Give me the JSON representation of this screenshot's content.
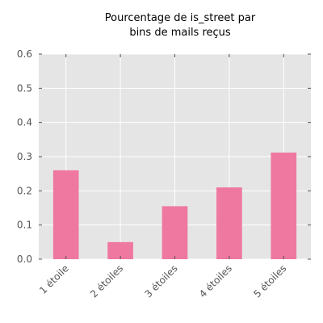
{
  "chart_data": {
    "type": "bar",
    "title_lines": [
      "Pourcentage de is_street par",
      "bins de mails reçus"
    ],
    "xlabel": "",
    "ylabel": "",
    "categories": [
      "1 étoile",
      "2 étoiles",
      "3 étoiles",
      "4 étoiles",
      "5 étoiles"
    ],
    "values": [
      0.26,
      0.05,
      0.155,
      0.21,
      0.312
    ],
    "ylim": [
      0.0,
      0.6
    ],
    "yticks": [
      "0.0",
      "0.1",
      "0.2",
      "0.3",
      "0.4",
      "0.5",
      "0.6"
    ],
    "grid": true,
    "legend": "none",
    "colors": {
      "bar": "#ef78a0",
      "plot_background": "#e5e5e5",
      "grid": "#ffffff",
      "tick_text": "#555555"
    }
  }
}
